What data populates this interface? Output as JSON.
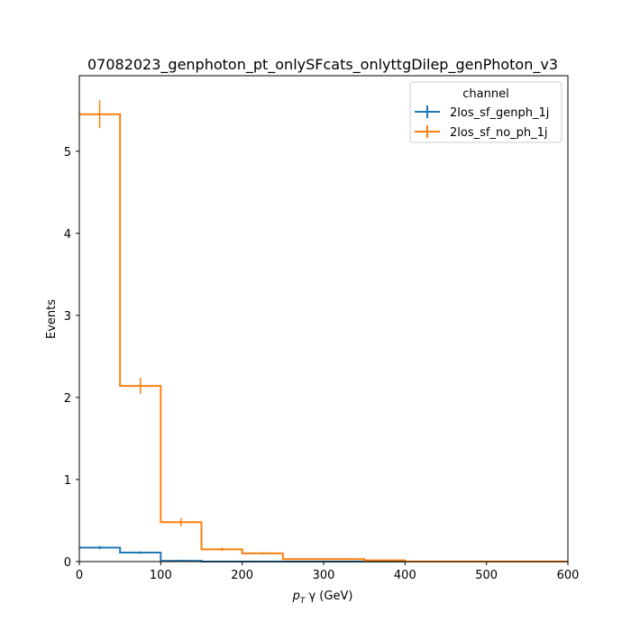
{
  "chart_data": {
    "type": "line",
    "drawstyle": "step-histogram",
    "title": "07082023_genphoton_pt_onlySFcats_onlyttgDilep_genPhoton_v3",
    "xlabel": "p_T γ (GeV)",
    "xlabel_parts": {
      "p": "p",
      "sub": "T",
      "rest": " γ (GeV)"
    },
    "ylabel": "Events",
    "xlim": [
      0,
      600
    ],
    "ylim": [
      0,
      5.92
    ],
    "x_ticks": [
      0,
      100,
      200,
      300,
      400,
      500,
      600
    ],
    "y_ticks": [
      0,
      1,
      2,
      3,
      4,
      5
    ],
    "grid": false,
    "legend": {
      "title": "channel",
      "placement": "top-right"
    },
    "bin_edges": [
      0,
      50,
      100,
      150,
      200,
      250,
      300,
      350,
      400,
      450,
      500,
      550,
      600
    ],
    "series": [
      {
        "name": "2los_sf_genph_1j",
        "color": "#1f77b4",
        "values": [
          0.17,
          0.11,
          0.01,
          0.0,
          0.0,
          0.0,
          0.0,
          0.0,
          0.0,
          0.0,
          0.0,
          0.0
        ],
        "errors": [
          0.02,
          0.015,
          0.01,
          0.0,
          0.0,
          0.0,
          0.0,
          0.0,
          0.0,
          0.0,
          0.0,
          0.0
        ]
      },
      {
        "name": "2los_sf_no_ph_1j",
        "color": "#ff7f0e",
        "values": [
          5.45,
          2.14,
          0.48,
          0.15,
          0.1,
          0.03,
          0.03,
          0.015,
          0.0,
          0.0,
          0.0,
          0.0
        ],
        "errors": [
          0.17,
          0.1,
          0.05,
          0.02,
          0.015,
          0.008,
          0.008,
          0.005,
          0.0,
          0.0,
          0.0,
          0.0
        ]
      }
    ]
  }
}
